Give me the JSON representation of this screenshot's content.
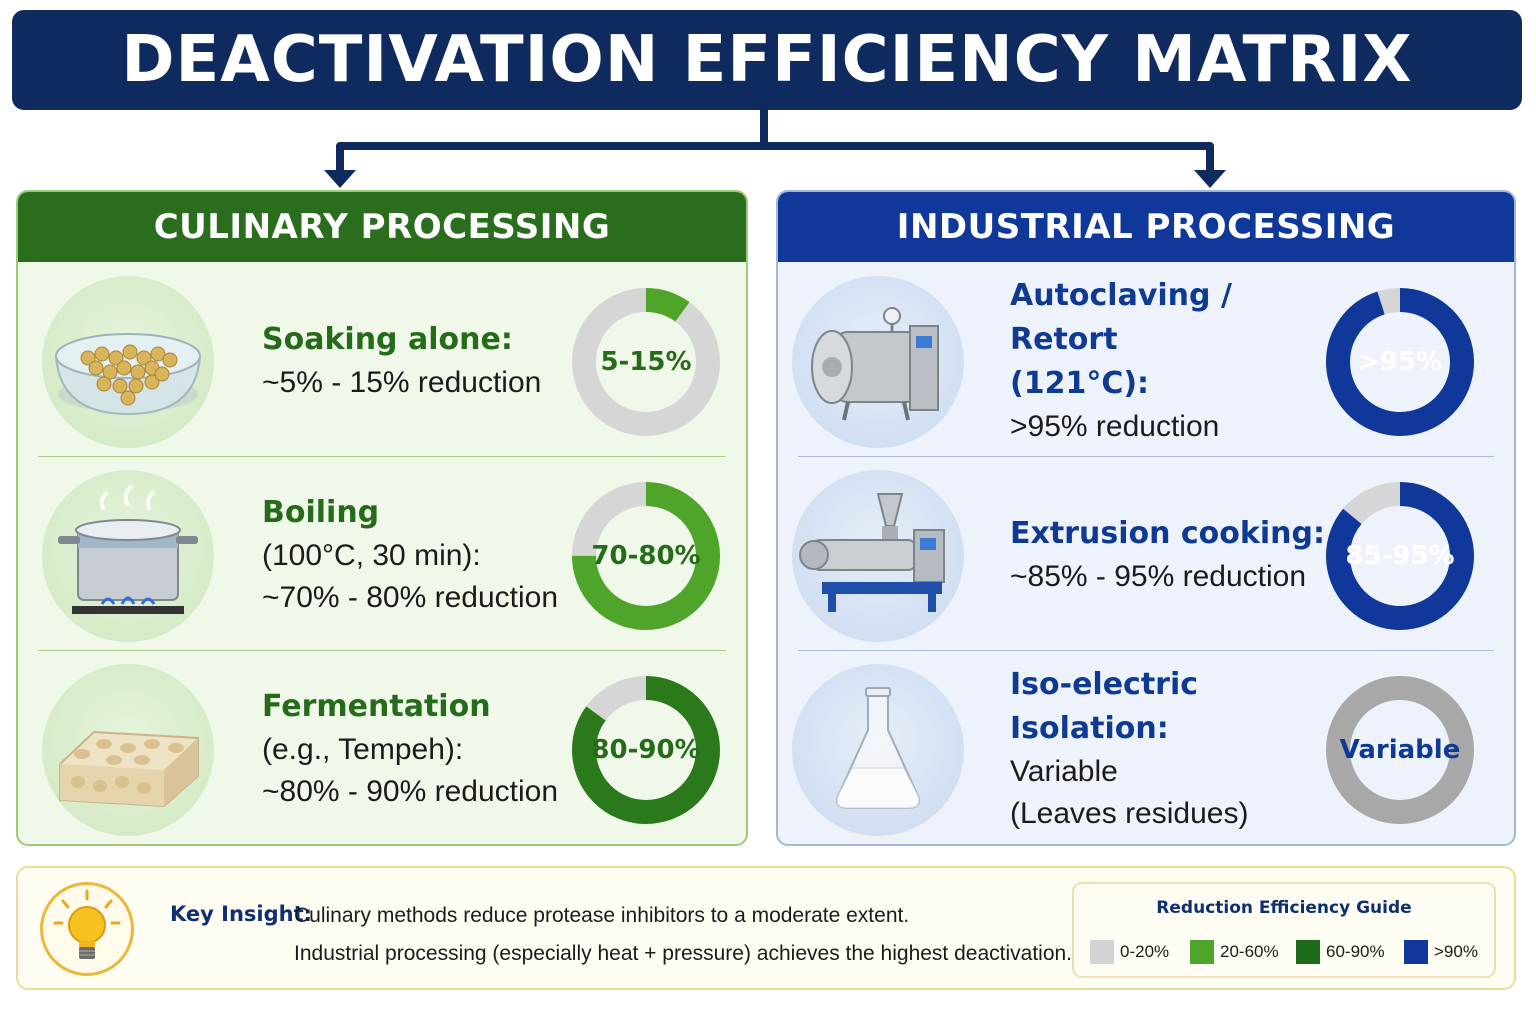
{
  "title": "DEACTIVATION EFFICIENCY MATRIX",
  "colors": {
    "navy": "#0e2a5e",
    "culinary_green": "#2a6e1d",
    "industrial_blue": "#10389a",
    "light_green": "#4ea52a",
    "dark_green": "#2a7a1c",
    "gray": "#d3d3d3",
    "variable_gray": "#a8a8a8"
  },
  "culinary": {
    "header": "CULINARY PROCESSING",
    "rows": [
      {
        "icon": "soybean-bowl-icon",
        "method": "Soaking alone:",
        "lines": [
          "~5% - 15% reduction"
        ],
        "badge": "5-15%",
        "fill_fraction": 0.1,
        "color": "#4ea52a"
      },
      {
        "icon": "boiling-pot-icon",
        "method": "Boiling",
        "lines": [
          "(100°C, 30 min):",
          "~70% - 80% reduction"
        ],
        "badge": "70-80%",
        "fill_fraction": 0.75,
        "color": "#4ea52a"
      },
      {
        "icon": "tempeh-block-icon",
        "method": "Fermentation",
        "lines": [
          "(e.g., Tempeh):",
          "~80% - 90% reduction"
        ],
        "badge": "80-90%",
        "fill_fraction": 0.85,
        "color": "#2a7a1c"
      }
    ]
  },
  "industrial": {
    "header": "INDUSTRIAL PROCESSING",
    "rows": [
      {
        "icon": "autoclave-icon",
        "method": "Autoclaving / Retort",
        "method2": "(121°C):",
        "lines": [
          ">95% reduction"
        ],
        "badge": ">95%",
        "fill_fraction": 0.95,
        "color": "#10389a"
      },
      {
        "icon": "extruder-icon",
        "method": "Extrusion cooking:",
        "lines": [
          "~85% - 95% reduction"
        ],
        "badge": "85-95%",
        "fill_fraction": 0.86,
        "color": "#10389a"
      },
      {
        "icon": "flask-icon",
        "method": "Iso-electric Isolation:",
        "lines": [
          "Variable",
          "(Leaves residues)"
        ],
        "badge": "Variable",
        "fill_fraction": 1.0,
        "color": "#a8a8a8"
      }
    ]
  },
  "insight": {
    "icon": "lightbulb-icon",
    "label": "Key Insight:",
    "line1": "Culinary methods reduce protease inhibitors to a moderate extent.",
    "line2": "Industrial processing (especially heat + pressure) achieves the highest deactivation."
  },
  "legend": {
    "title": "Reduction Efficiency Guide",
    "items": [
      {
        "label": "0-20%",
        "color": "#d3d3d3"
      },
      {
        "label": "20-60%",
        "color": "#4ea52a"
      },
      {
        "label": "60-90%",
        "color": "#1f6a1a"
      },
      {
        "label": ">90%",
        "color": "#10389a"
      }
    ]
  }
}
